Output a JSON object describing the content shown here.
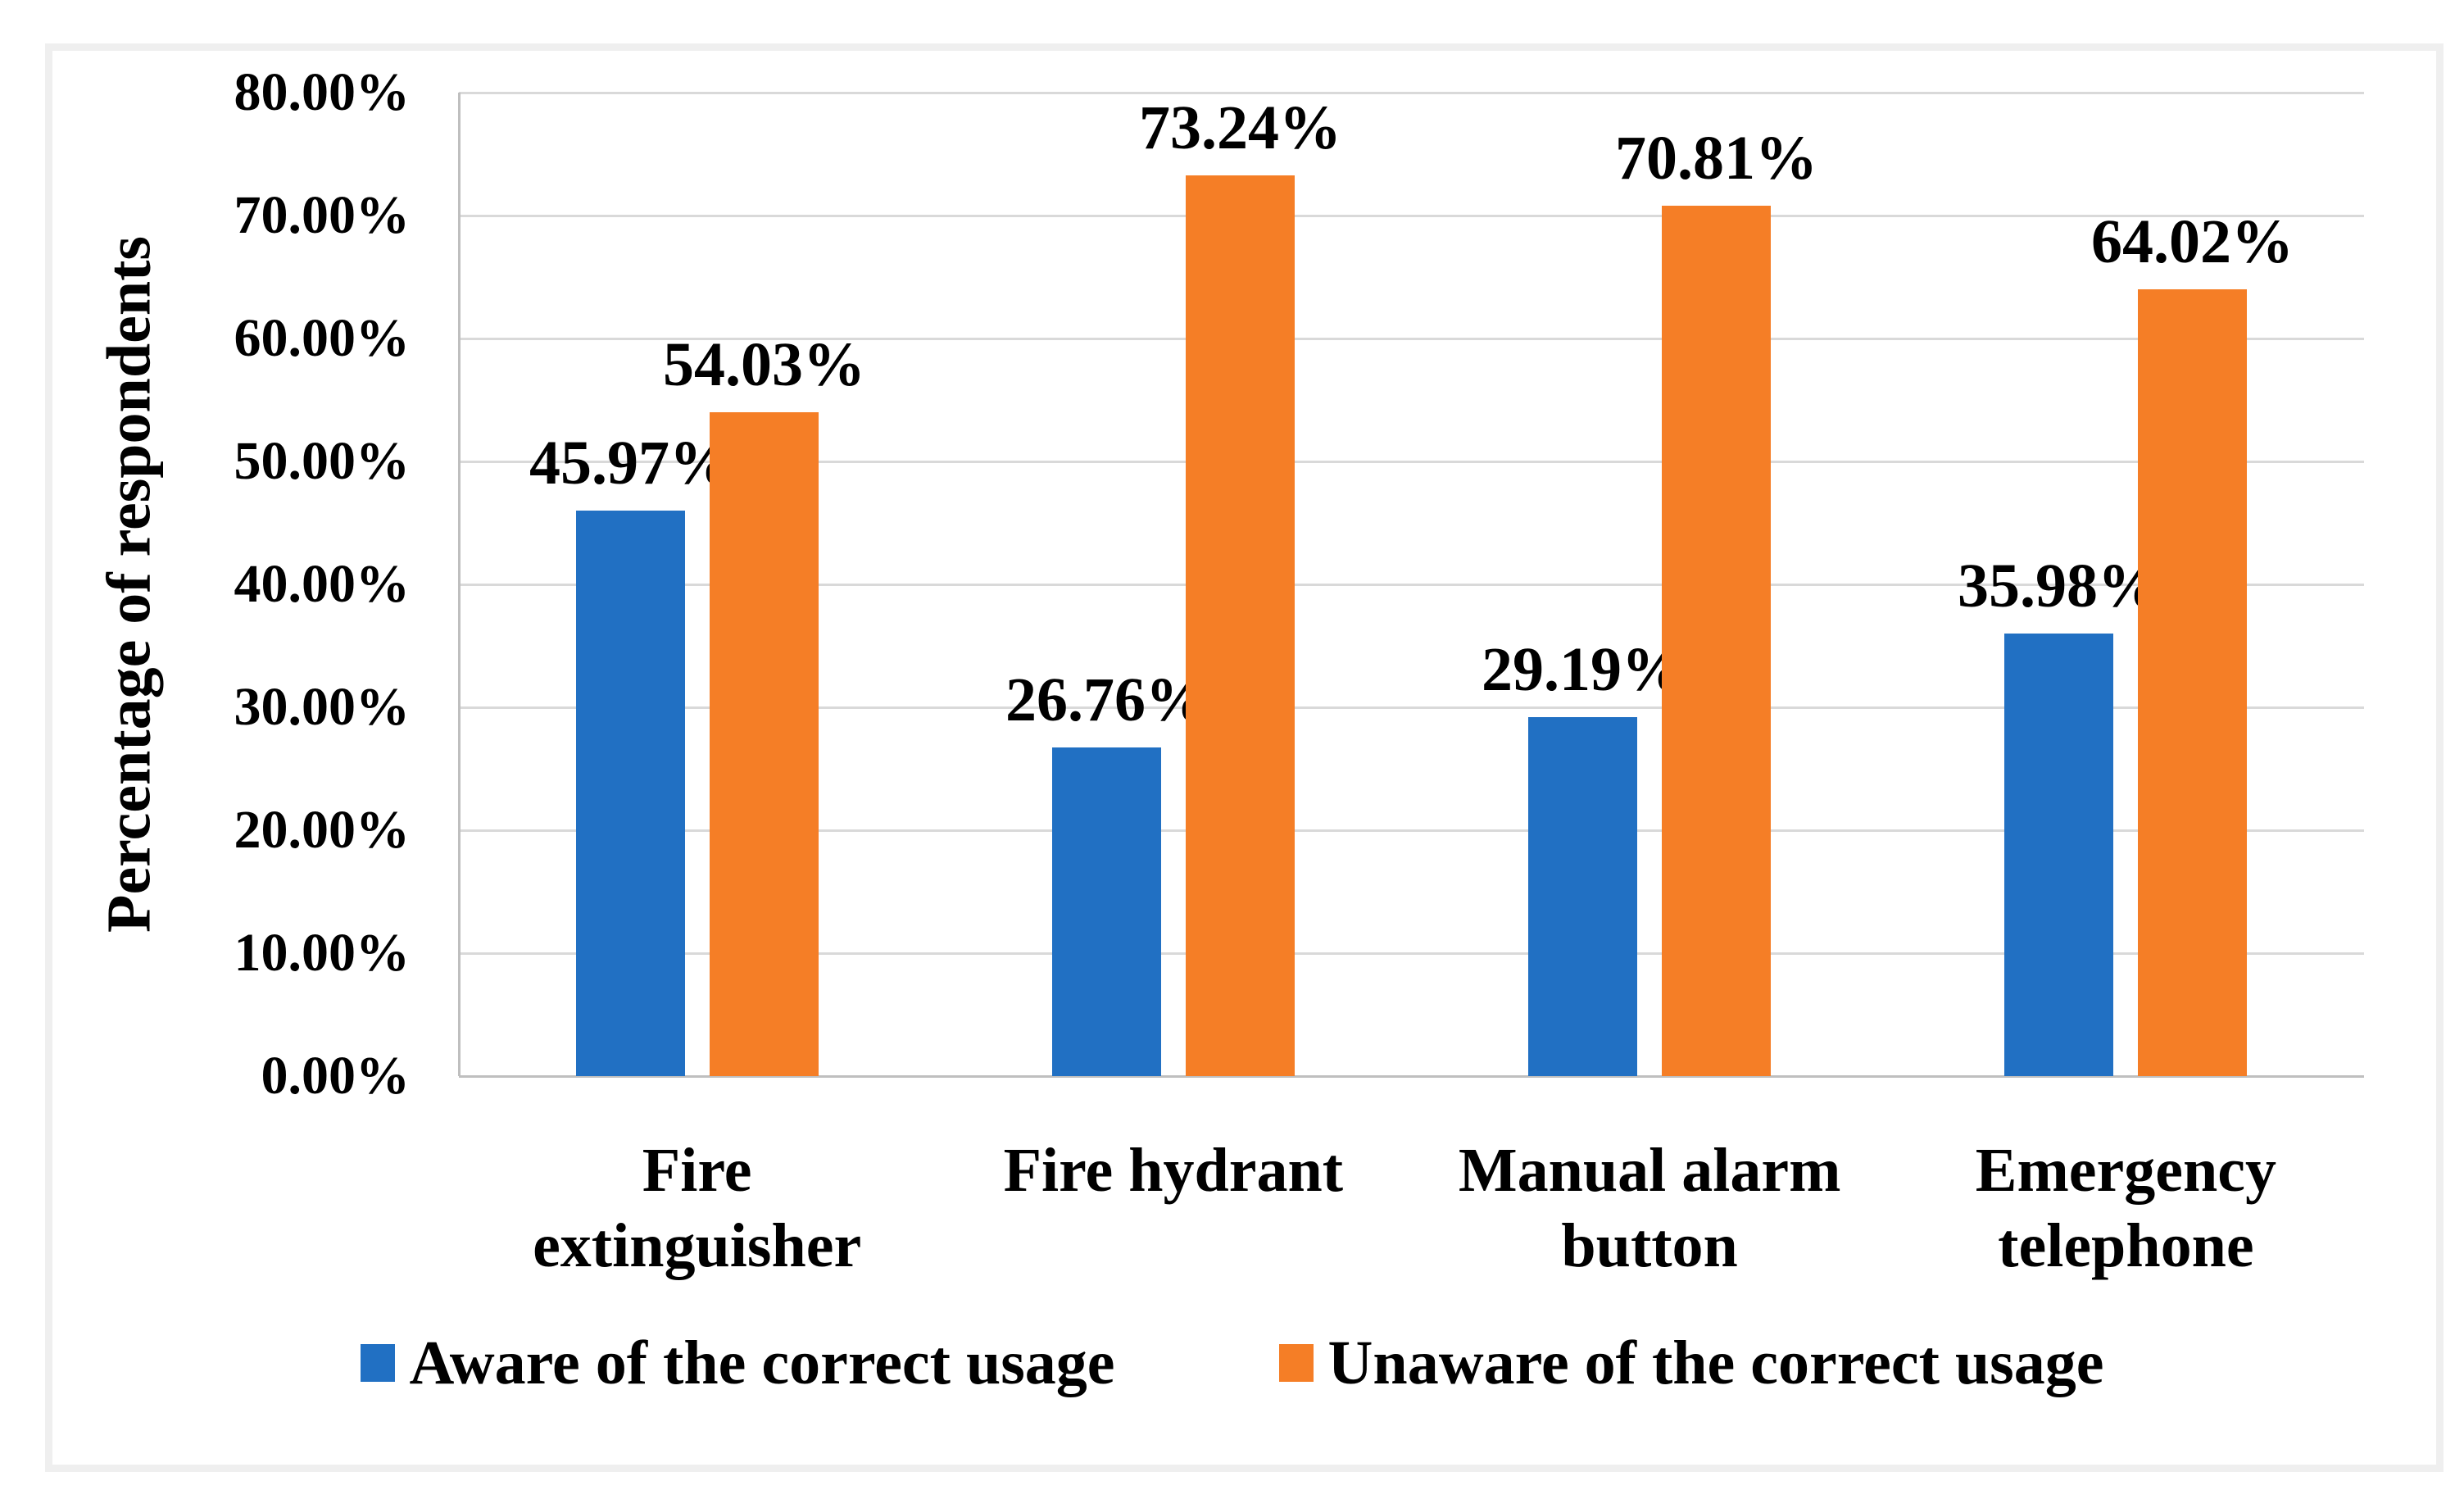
{
  "chart_data": {
    "type": "bar",
    "title": "",
    "ylabel": "Percentage of respondents",
    "xlabel": "",
    "categories": [
      "Fire extinguisher",
      "Fire hydrant",
      "Manual alarm button",
      "Emergency telephone"
    ],
    "category_lines": [
      [
        "Fire",
        "extinguisher"
      ],
      [
        "Fire hydrant"
      ],
      [
        "Manual alarm",
        "button"
      ],
      [
        "Emergency",
        "telephone"
      ]
    ],
    "series": [
      {
        "name": "Aware of the correct usage",
        "color": "#2170c3",
        "values": [
          45.97,
          26.76,
          29.19,
          35.98
        ]
      },
      {
        "name": "Unaware of the correct usage",
        "color": "#f57e26",
        "values": [
          54.03,
          73.24,
          70.81,
          64.02
        ]
      }
    ],
    "data_labels": [
      [
        "45.97%",
        "26.76%",
        "29.19%",
        "35.98%"
      ],
      [
        "54.03%",
        "73.24%",
        "70.81%",
        "64.02%"
      ]
    ],
    "y_ticks": [
      "80.00%",
      "70.00%",
      "60.00%",
      "50.00%",
      "40.00%",
      "30.00%",
      "20.00%",
      "10.00%",
      "0.00%"
    ],
    "ylim": [
      0,
      80
    ],
    "grid": true,
    "legend_position": "bottom",
    "colors": {
      "grid": "#d9d9d9",
      "axis": "#bfbfbf",
      "text": "#000000",
      "frame": "#efefef"
    }
  }
}
